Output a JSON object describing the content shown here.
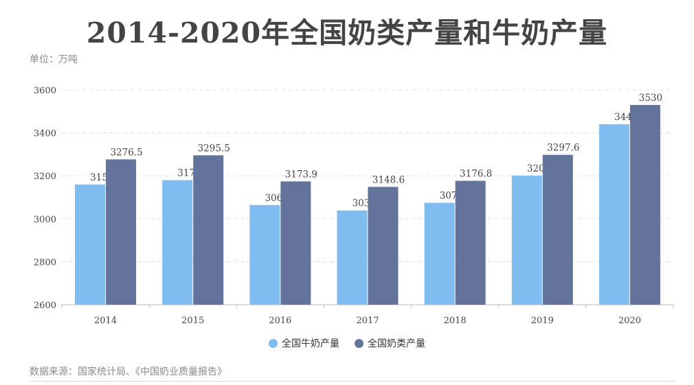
{
  "title": "2014-2020年全国奶类产量和牛奶产量",
  "unit_label": "单位：万吨",
  "source": "数据来源：国家统计局、《中国奶业质量报告》",
  "colors": {
    "milk": "#7fbdf1",
    "dairy": "#63739b",
    "grid": "#dddddd",
    "axis": "#bbbbbb"
  },
  "chart_data": {
    "type": "bar",
    "categories": [
      "2014",
      "2015",
      "2016",
      "2017",
      "2018",
      "2019",
      "2020"
    ],
    "series": [
      {
        "name": "全国牛奶产量",
        "values": [
          3159.88,
          3179.83,
          3064.03,
          3038.62,
          3074.56,
          3201.24,
          3440.14
        ],
        "labels": [
          "3159.88",
          "3179.83",
          "3064.03",
          "3038.62",
          "3074.56",
          "3201.24",
          "3440.14"
        ]
      },
      {
        "name": "全国奶类产量",
        "values": [
          3276.5,
          3295.5,
          3173.9,
          3148.6,
          3176.8,
          3297.6,
          3530
        ],
        "labels": [
          "3276.5",
          "3295.5",
          "3173.9",
          "3148.6",
          "3176.8",
          "3297.6",
          "3530"
        ]
      }
    ],
    "ylim": [
      2600,
      3600
    ],
    "yticks": [
      "2600",
      "2800",
      "3000",
      "3200",
      "3400",
      "3600"
    ],
    "grid": true,
    "legend_position": "bottom"
  }
}
